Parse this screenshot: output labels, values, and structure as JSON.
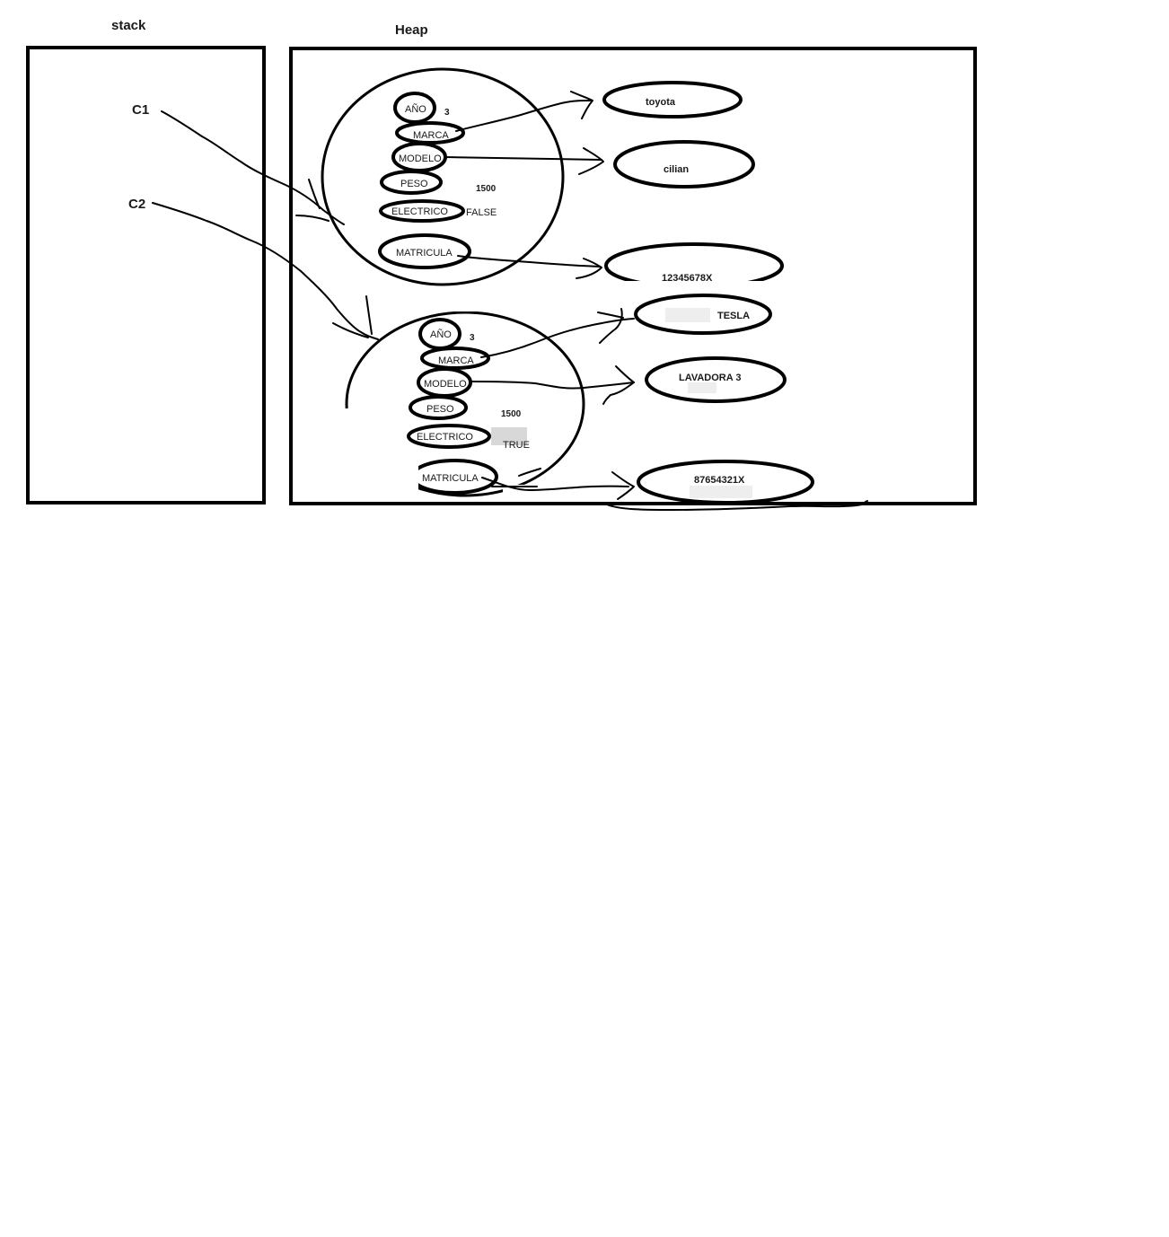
{
  "labels": {
    "stack": "stack",
    "heap": "Heap"
  },
  "stack_vars": [
    {
      "name": "C1"
    },
    {
      "name": "C2"
    }
  ],
  "objects": [
    {
      "fields": {
        "anio": "AÑO",
        "anio_value": "3",
        "marca": "MARCA",
        "modelo": "MODELO",
        "peso": "PESO",
        "peso_value": "1500",
        "electrico": "ELECTRICO",
        "electrico_value": "FALSE",
        "matricula": "MATRICULA"
      },
      "strings": {
        "marca": "toyota",
        "modelo": "cilian",
        "matricula": "12345678X"
      }
    },
    {
      "fields": {
        "anio": "AÑO",
        "anio_value": "3",
        "marca": "MARCA",
        "modelo": "MODELO",
        "peso": "PESO",
        "peso_value": "1500",
        "electrico": "ELECTRICO",
        "electrico_value": "TRUE",
        "matricula": "MATRICULA"
      },
      "strings": {
        "marca": "TESLA",
        "modelo": "LAVADORA 3",
        "matricula": "87654321X"
      }
    }
  ]
}
